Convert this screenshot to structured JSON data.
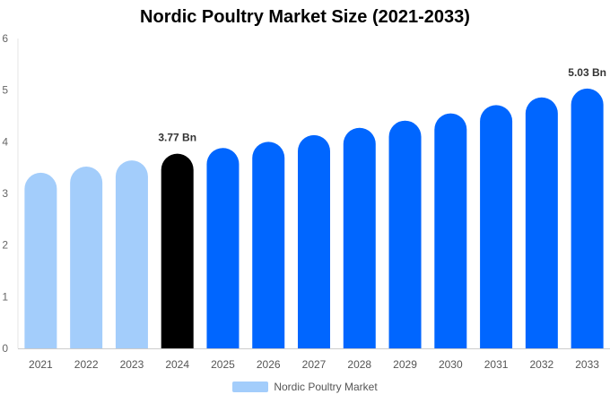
{
  "chart_data": {
    "type": "bar",
    "title": "Nordic Poultry Market Size (2021-2033)",
    "categories": [
      "2021",
      "2022",
      "2023",
      "2024",
      "2025",
      "2026",
      "2027",
      "2028",
      "2029",
      "2030",
      "2031",
      "2032",
      "2033"
    ],
    "series": [
      {
        "name": "Nordic Poultry Market",
        "values": [
          3.4,
          3.52,
          3.64,
          3.77,
          3.88,
          4.0,
          4.13,
          4.27,
          4.41,
          4.55,
          4.71,
          4.86,
          5.03
        ]
      }
    ],
    "bar_colors": [
      "#a3cdfb",
      "#a3cdfb",
      "#a3cdfb",
      "#000000",
      "#0066ff",
      "#0066ff",
      "#0066ff",
      "#0066ff",
      "#0066ff",
      "#0066ff",
      "#0066ff",
      "#0066ff",
      "#0066ff"
    ],
    "data_labels": [
      {
        "category": "2024",
        "text": "3.77 Bn"
      },
      {
        "category": "2033",
        "text": "5.03 Bn"
      }
    ],
    "yticks": [
      "0",
      "1",
      "2",
      "3",
      "4",
      "5",
      "6"
    ],
    "ylim": [
      0,
      6
    ],
    "xlabel": "",
    "ylabel": "",
    "grid": false,
    "legend_position": "bottom",
    "legend_color": "#a3cdfb"
  }
}
